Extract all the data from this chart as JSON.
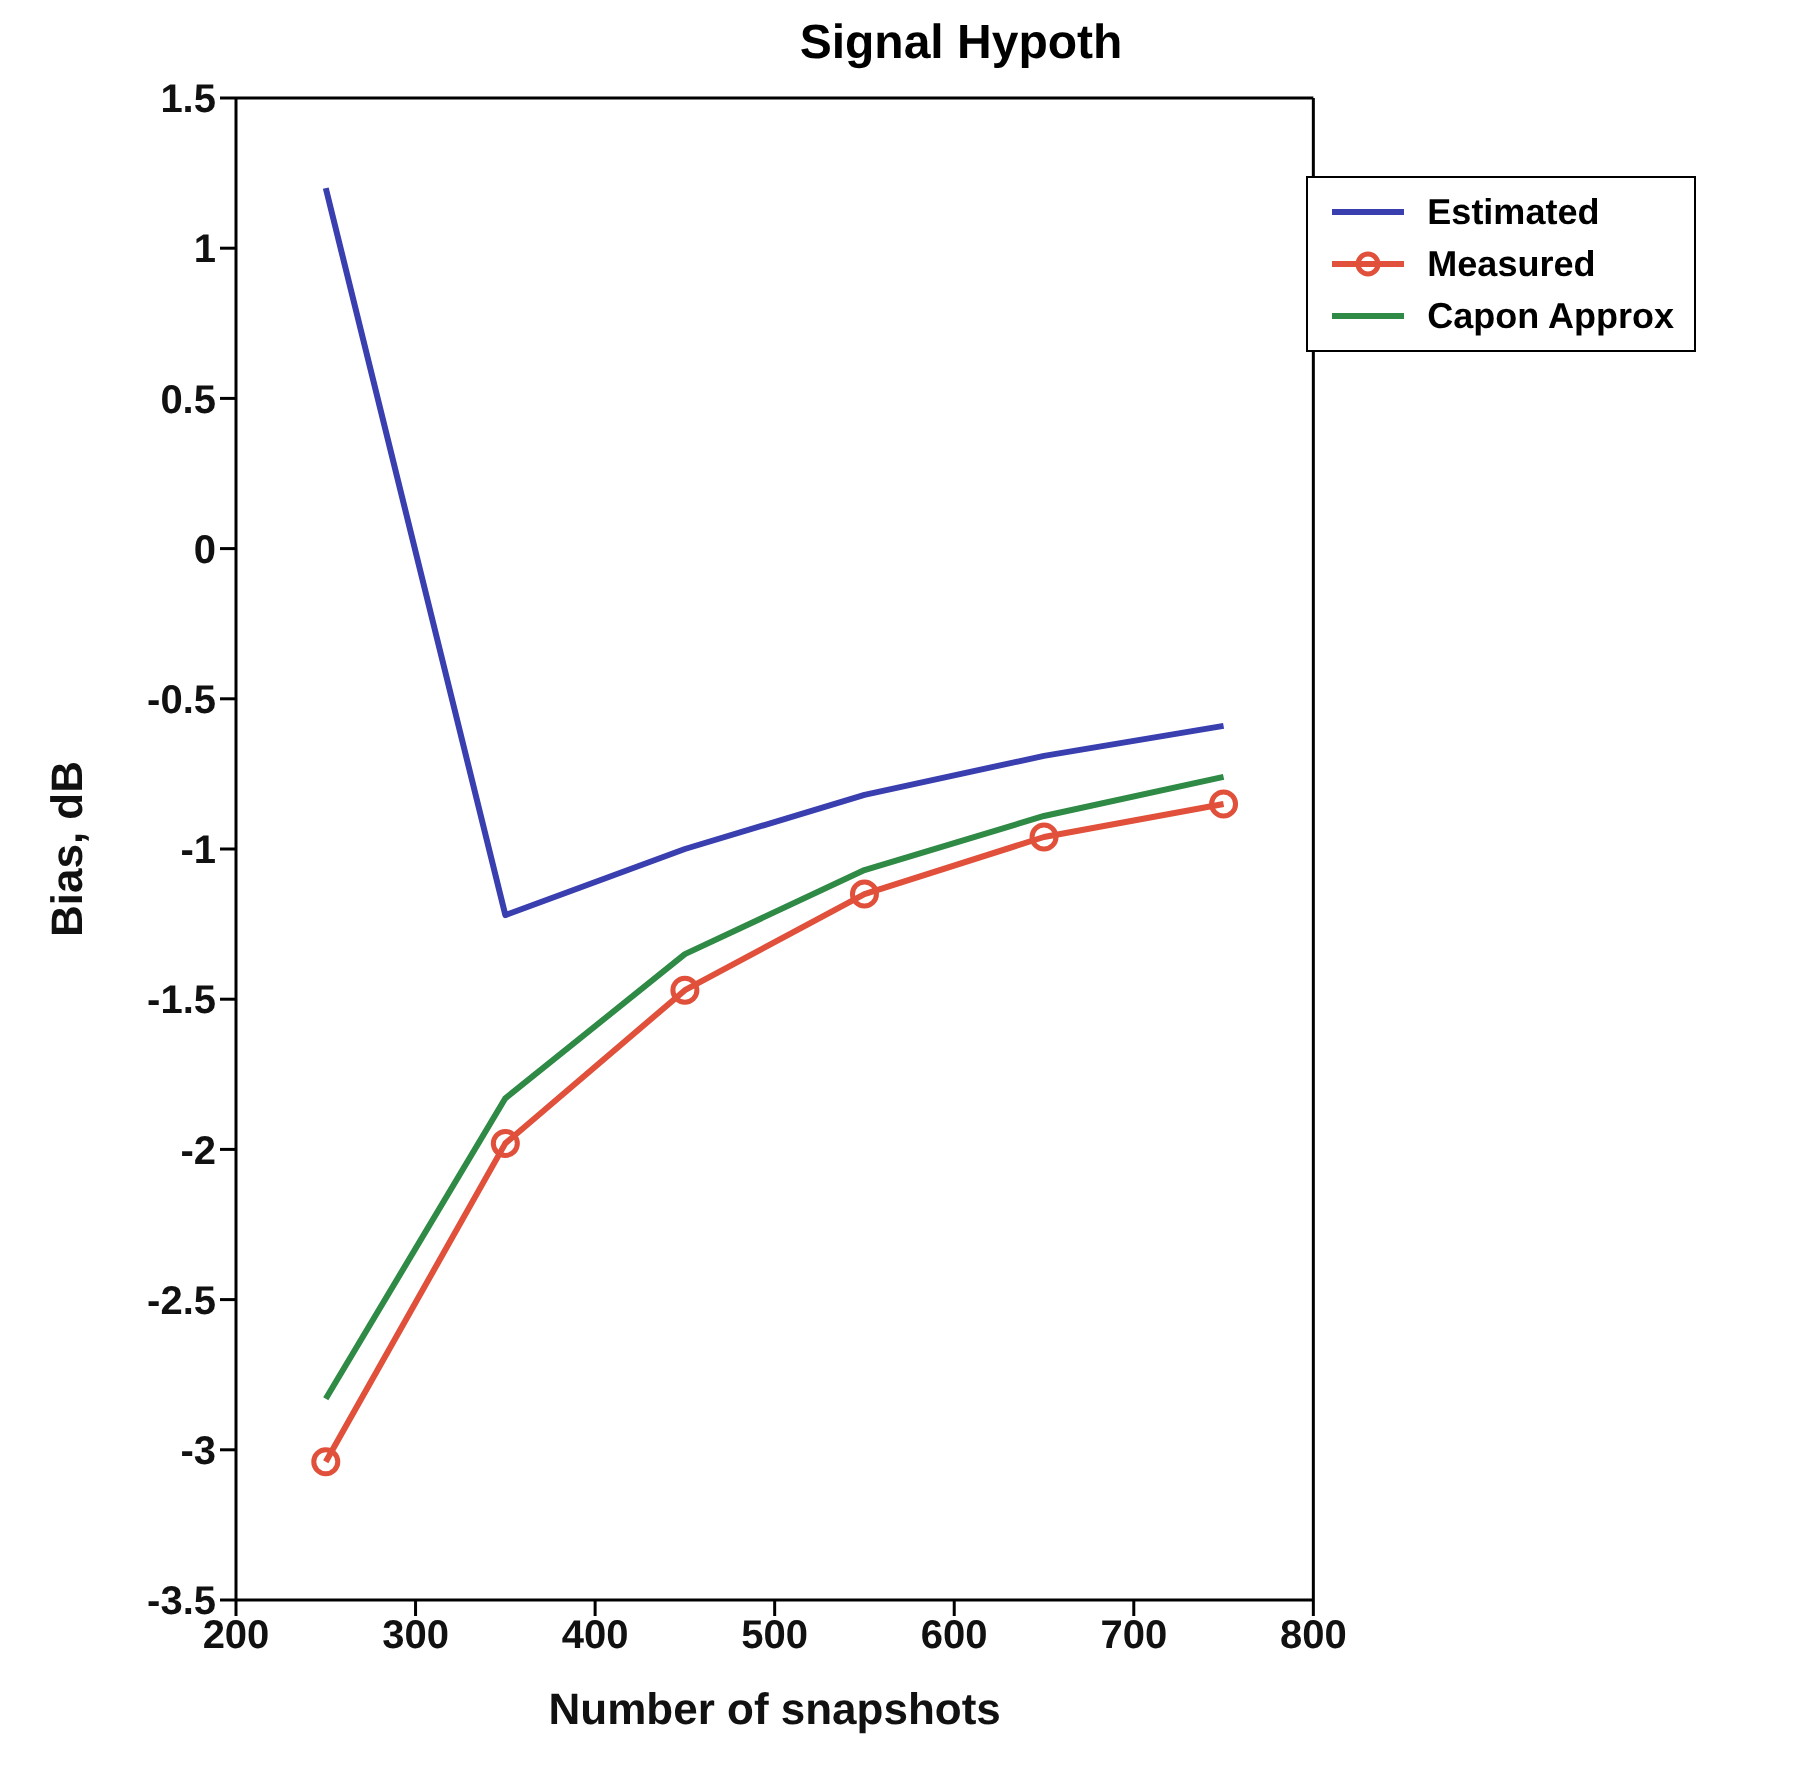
{
  "chart_data": {
    "type": "line",
    "title": "Signal Hypoth",
    "xlabel": "Number of snapshots",
    "ylabel": "Bias, dB",
    "x": [
      250,
      350,
      450,
      550,
      650,
      750
    ],
    "series": [
      {
        "name": "Estimated",
        "color": "#3a3fb0",
        "values": [
          1.2,
          -1.22,
          -1.0,
          -0.82,
          -0.69,
          -0.59
        ],
        "marker": "none"
      },
      {
        "name": "Measured",
        "color": "#e0503a",
        "values": [
          -3.04,
          -1.98,
          -1.47,
          -1.15,
          -0.96,
          -0.85
        ],
        "marker": "circle"
      },
      {
        "name": "Capon Approx",
        "color": "#2e8a45",
        "values": [
          -2.83,
          -1.83,
          -1.35,
          -1.07,
          -0.89,
          -0.76
        ],
        "marker": "none"
      }
    ],
    "xlim": [
      200,
      800
    ],
    "xticks": [
      200,
      300,
      400,
      500,
      600,
      700,
      800
    ],
    "ylim": [
      -3.5,
      1.5
    ],
    "yticks": [
      -3.5,
      -3,
      -2.5,
      -2,
      -1.5,
      -1,
      -0.5,
      0,
      0.5,
      1,
      1.5
    ],
    "legend": "top right",
    "line_style": "solid"
  }
}
